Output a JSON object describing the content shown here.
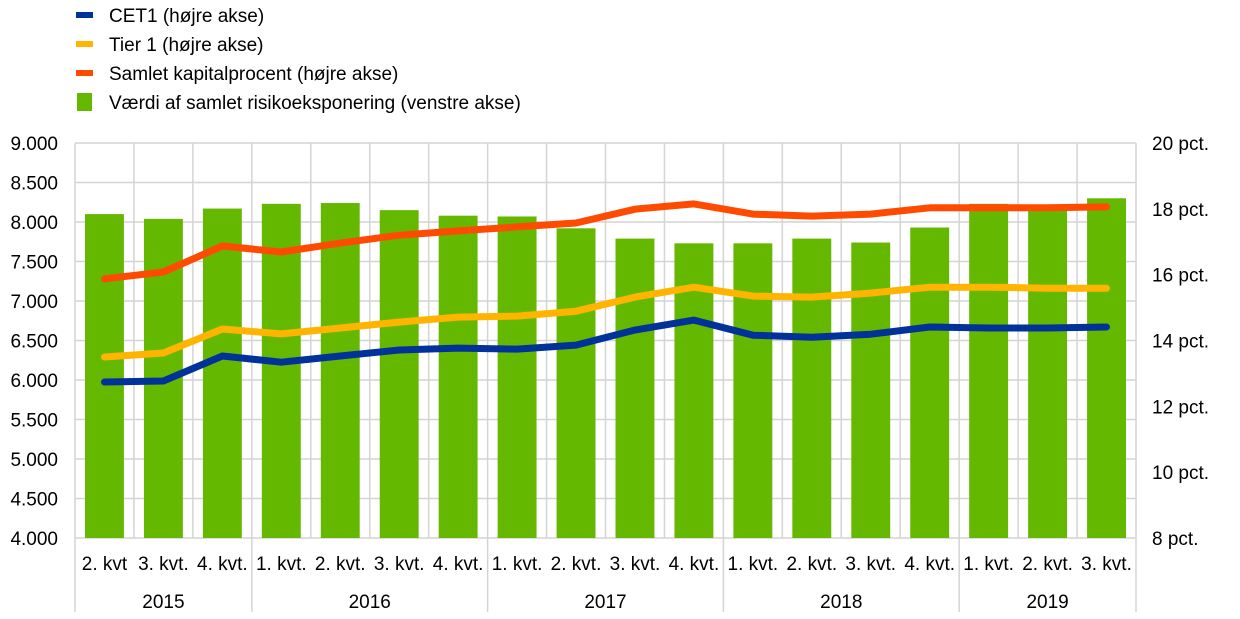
{
  "chart_data": {
    "type": "bar",
    "title": "",
    "legend": {
      "placement": "top-left",
      "entries": [
        {
          "label": "CET1 (højre akse)",
          "color": "#003299",
          "kind": "line"
        },
        {
          "label": "Tier 1 (højre akse)",
          "color": "#FFB400",
          "kind": "line"
        },
        {
          "label": "Samlet kapitalprocent (højre akse)",
          "color": "#FF4B00",
          "kind": "line"
        },
        {
          "label": "Værdi af samlet risikoeksponering (venstre akse)",
          "color": "#65B800",
          "kind": "bar"
        }
      ]
    },
    "categories": [
      "2. kvt",
      "3. kvt.",
      "4. kvt.",
      "1. kvt.",
      "2. kvt.",
      "3. kvt.",
      "4. kvt.",
      "1. kvt.",
      "2. kvt.",
      "3. kvt.",
      "4. kvt.",
      "1. kvt.",
      "2. kvt.",
      "3. kvt.",
      "4. kvt.",
      "1. kvt.",
      "2. kvt.",
      "3. kvt."
    ],
    "groups": [
      {
        "label": "2015",
        "count": 3
      },
      {
        "label": "2016",
        "count": 4
      },
      {
        "label": "2017",
        "count": 4
      },
      {
        "label": "2018",
        "count": 4
      },
      {
        "label": "2019",
        "count": 3
      }
    ],
    "left_axis": {
      "ylim": [
        4000,
        9000
      ],
      "ticks": [
        4000,
        4500,
        5000,
        5500,
        6000,
        6500,
        7000,
        7500,
        8000,
        8500,
        9000
      ],
      "tick_labels": [
        "4.000",
        "4.500",
        "5.000",
        "5.500",
        "6.000",
        "6.500",
        "7.000",
        "7.500",
        "8.000",
        "8.500",
        "9.000"
      ]
    },
    "right_axis": {
      "ylim": [
        8,
        20
      ],
      "ticks": [
        8,
        10,
        12,
        14,
        16,
        18,
        20
      ],
      "tick_labels": [
        "8 pct.",
        "10 pct.",
        "12 pct.",
        "14 pct.",
        "16 pct.",
        "18 pct.",
        "20 pct."
      ]
    },
    "grid": true,
    "series": [
      {
        "name": "Værdi af samlet risikoeksponering (venstre akse)",
        "type": "bar",
        "axis": "left",
        "color": "#65B800",
        "values": [
          8100,
          8040,
          8170,
          8230,
          8240,
          8150,
          8080,
          8070,
          7920,
          7790,
          7730,
          7730,
          7790,
          7740,
          7930,
          8230,
          8170,
          8300
        ]
      },
      {
        "name": "Samlet kapitalprocent (højre akse)",
        "type": "line",
        "axis": "right",
        "color": "#FF4B00",
        "values": [
          15.87,
          16.08,
          16.87,
          16.69,
          16.96,
          17.2,
          17.33,
          17.45,
          17.57,
          17.99,
          18.15,
          17.84,
          17.78,
          17.84,
          18.03,
          18.03,
          18.03,
          18.06
        ]
      },
      {
        "name": "Tier 1 (højre akse)",
        "type": "line",
        "axis": "right",
        "color": "#FFB400",
        "values": [
          13.5,
          13.62,
          14.35,
          14.2,
          14.38,
          14.56,
          14.71,
          14.74,
          14.89,
          15.32,
          15.62,
          15.35,
          15.32,
          15.44,
          15.62,
          15.62,
          15.59,
          15.59
        ]
      },
      {
        "name": "CET1 (højre akse)",
        "type": "line",
        "axis": "right",
        "color": "#003299",
        "values": [
          12.74,
          12.77,
          13.53,
          13.34,
          13.53,
          13.71,
          13.77,
          13.74,
          13.86,
          14.32,
          14.62,
          14.16,
          14.1,
          14.19,
          14.41,
          14.38,
          14.38,
          14.41
        ]
      }
    ]
  }
}
